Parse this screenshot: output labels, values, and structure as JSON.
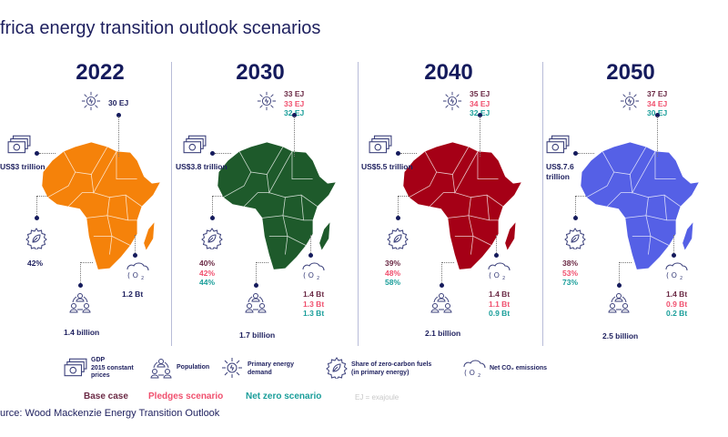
{
  "title": "frica energy transition outlook scenarios",
  "colors": {
    "base": "#6b2a45",
    "pledges": "#f0506e",
    "net_zero": "#1a9e9a",
    "text": "#1d1f5e"
  },
  "panels": [
    {
      "year": "2022",
      "map_fill": "#f5820a",
      "energy": [
        "30 EJ"
      ],
      "gdp": "US$3 trillion",
      "zero_carbon": [
        "42%"
      ],
      "population": "1.4 billion",
      "co2": [
        "1.2 Bt"
      ]
    },
    {
      "year": "2030",
      "map_fill": "#1e5a2b",
      "energy": [
        "33 EJ",
        "33 EJ",
        "32 EJ"
      ],
      "gdp": "US$3.8 trillion",
      "zero_carbon": [
        "40%",
        "42%",
        "44%"
      ],
      "population": "1.7 billion",
      "co2": [
        "1.4 Bt",
        "1.3 Bt",
        "1.3 Bt"
      ]
    },
    {
      "year": "2040",
      "map_fill": "#a50016",
      "energy": [
        "35 EJ",
        "34 EJ",
        "32 EJ"
      ],
      "gdp": "US$5.5 trillion",
      "zero_carbon": [
        "39%",
        "48%",
        "58%"
      ],
      "population": "2.1 billion",
      "co2": [
        "1.4 Bt",
        "1.1 Bt",
        "0.9 Bt"
      ]
    },
    {
      "year": "2050",
      "map_fill": "#5560e6",
      "energy": [
        "37 EJ",
        "34 EJ",
        "30 EJ"
      ],
      "gdp": "US$.7.6 trillion",
      "zero_carbon": [
        "38%",
        "53%",
        "73%"
      ],
      "population": "2.5 billion",
      "co2": [
        "1.4 Bt",
        "0.9 Bt",
        "0.2 Bt"
      ]
    }
  ],
  "legend": {
    "gdp": "GDP\n2015 constant\nprices",
    "population": "Population",
    "energy": "Primary energy\ndemand",
    "zero_carbon": "Share of zero-carbon fuels\n(in primary energy)",
    "co2": "Net CO₂ emissions"
  },
  "scenarios": {
    "base": "Base case",
    "pledges": "Pledges scenario",
    "net_zero": "Net zero scenario",
    "note": "EJ = exajoule"
  },
  "source": "urce: Wood Mackenzie Energy Transition Outlook"
}
